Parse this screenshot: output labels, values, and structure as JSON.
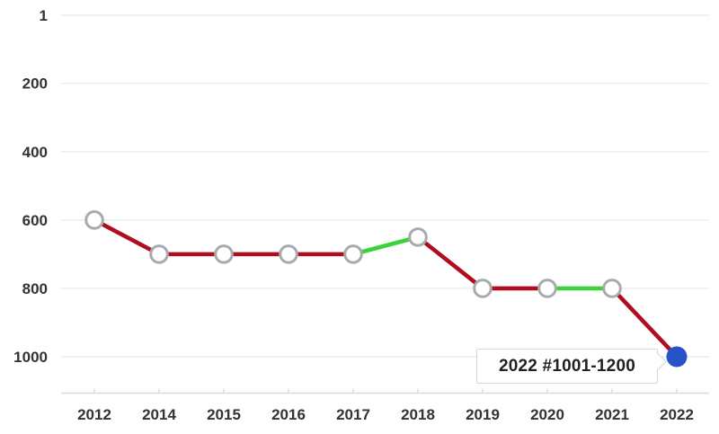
{
  "chart_data": {
    "type": "line",
    "title": "",
    "categories": [
      "2012",
      "2014",
      "2015",
      "2016",
      "2017",
      "2018",
      "2019",
      "2020",
      "2021",
      "2022"
    ],
    "values": [
      600,
      700,
      700,
      700,
      700,
      650,
      800,
      800,
      800,
      1000
    ],
    "y_axis": {
      "ticks": [
        1,
        200,
        400,
        600,
        800,
        1000
      ],
      "reversed": true,
      "range": [
        1,
        1000
      ]
    },
    "segment_trend": [
      "down",
      "down",
      "down",
      "down",
      "up",
      "down",
      "down",
      "up",
      "down"
    ],
    "highlight_index": 9,
    "annotation": {
      "label": "2022 #1001-1200",
      "year": "2022",
      "band": "#1001-1200"
    },
    "grid": true,
    "legend": "none",
    "colors": {
      "decline_segment": "#b00e1e",
      "improve_segment": "#3cd23c",
      "highlight_marker": "#2852c8",
      "marker_fill": "#ffffff",
      "marker_stroke": "#a6abad",
      "gridline": "#eaecec",
      "axis_line": "#d9dcdd",
      "label_text": "#333333",
      "callout_text": "#202124",
      "callout_border": "#d3d7d8"
    }
  }
}
